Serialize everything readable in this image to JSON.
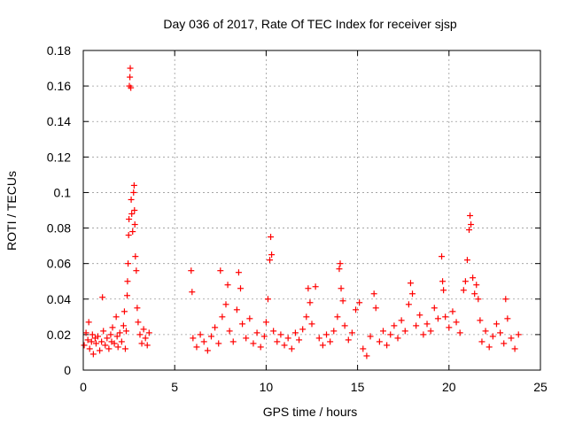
{
  "chart_data": {
    "type": "scatter",
    "title": "Day 036 of 2017, Rate Of TEC Index for receiver sjsp",
    "xlabel": "GPS time / hours",
    "ylabel": "ROTI / TECUs",
    "xlim": [
      0,
      25
    ],
    "ylim": [
      0,
      0.18
    ],
    "x_ticks": [
      0,
      5,
      10,
      15,
      20,
      25
    ],
    "x_tick_labels": [
      "0",
      "5",
      "10",
      "15",
      "20",
      "25"
    ],
    "y_ticks": [
      0,
      0.02,
      0.04,
      0.06,
      0.08,
      0.1,
      0.12,
      0.14,
      0.16,
      0.18
    ],
    "y_tick_labels": [
      "0",
      "0.02",
      "0.04",
      "0.06",
      "0.08",
      "0.1",
      "0.12",
      "0.14",
      "0.16",
      "0.18"
    ],
    "grid": true,
    "marker": "+",
    "color": "#ff0000",
    "gap_hours": [
      3.7,
      5.8
    ],
    "series": [
      {
        "name": "ROTI",
        "points": [
          [
            0.05,
            0.014
          ],
          [
            0.15,
            0.021
          ],
          [
            0.25,
            0.017
          ],
          [
            0.3,
            0.027
          ],
          [
            0.35,
            0.012
          ],
          [
            0.45,
            0.016
          ],
          [
            0.5,
            0.02
          ],
          [
            0.55,
            0.009
          ],
          [
            0.65,
            0.018
          ],
          [
            0.7,
            0.015
          ],
          [
            0.8,
            0.019
          ],
          [
            0.9,
            0.011
          ],
          [
            1.0,
            0.016
          ],
          [
            1.05,
            0.041
          ],
          [
            1.1,
            0.022
          ],
          [
            1.2,
            0.014
          ],
          [
            1.3,
            0.018
          ],
          [
            1.4,
            0.012
          ],
          [
            1.5,
            0.02
          ],
          [
            1.55,
            0.016
          ],
          [
            1.6,
            0.024
          ],
          [
            1.7,
            0.015
          ],
          [
            1.8,
            0.03
          ],
          [
            1.85,
            0.019
          ],
          [
            1.9,
            0.013
          ],
          [
            2.0,
            0.021
          ],
          [
            2.1,
            0.016
          ],
          [
            2.2,
            0.025
          ],
          [
            2.25,
            0.033
          ],
          [
            2.3,
            0.012
          ],
          [
            2.35,
            0.022
          ],
          [
            2.4,
            0.042
          ],
          [
            2.42,
            0.05
          ],
          [
            2.45,
            0.06
          ],
          [
            2.48,
            0.076
          ],
          [
            2.5,
            0.085
          ],
          [
            2.52,
            0.16
          ],
          [
            2.55,
            0.165
          ],
          [
            2.57,
            0.17
          ],
          [
            2.6,
            0.159
          ],
          [
            2.62,
            0.096
          ],
          [
            2.65,
            0.088
          ],
          [
            2.7,
            0.078
          ],
          [
            2.75,
            0.1
          ],
          [
            2.78,
            0.104
          ],
          [
            2.8,
            0.09
          ],
          [
            2.82,
            0.082
          ],
          [
            2.85,
            0.064
          ],
          [
            2.9,
            0.056
          ],
          [
            2.95,
            0.035
          ],
          [
            3.0,
            0.027
          ],
          [
            3.1,
            0.02
          ],
          [
            3.2,
            0.015
          ],
          [
            3.3,
            0.023
          ],
          [
            3.4,
            0.018
          ],
          [
            3.5,
            0.014
          ],
          [
            3.6,
            0.021
          ],
          [
            5.9,
            0.056
          ],
          [
            5.95,
            0.044
          ],
          [
            6.0,
            0.018
          ],
          [
            6.2,
            0.013
          ],
          [
            6.4,
            0.02
          ],
          [
            6.6,
            0.016
          ],
          [
            6.8,
            0.011
          ],
          [
            7.0,
            0.019
          ],
          [
            7.2,
            0.024
          ],
          [
            7.4,
            0.015
          ],
          [
            7.5,
            0.056
          ],
          [
            7.6,
            0.03
          ],
          [
            7.8,
            0.037
          ],
          [
            7.9,
            0.048
          ],
          [
            8.0,
            0.022
          ],
          [
            8.2,
            0.016
          ],
          [
            8.4,
            0.034
          ],
          [
            8.5,
            0.055
          ],
          [
            8.6,
            0.046
          ],
          [
            8.7,
            0.026
          ],
          [
            8.9,
            0.018
          ],
          [
            9.1,
            0.029
          ],
          [
            9.3,
            0.015
          ],
          [
            9.5,
            0.021
          ],
          [
            9.7,
            0.013
          ],
          [
            9.9,
            0.019
          ],
          [
            10.0,
            0.027
          ],
          [
            10.1,
            0.04
          ],
          [
            10.2,
            0.062
          ],
          [
            10.25,
            0.075
          ],
          [
            10.3,
            0.065
          ],
          [
            10.4,
            0.022
          ],
          [
            10.6,
            0.016
          ],
          [
            10.8,
            0.02
          ],
          [
            11.0,
            0.014
          ],
          [
            11.2,
            0.018
          ],
          [
            11.4,
            0.012
          ],
          [
            11.6,
            0.021
          ],
          [
            11.8,
            0.017
          ],
          [
            12.0,
            0.023
          ],
          [
            12.2,
            0.03
          ],
          [
            12.3,
            0.046
          ],
          [
            12.4,
            0.038
          ],
          [
            12.5,
            0.026
          ],
          [
            12.7,
            0.047
          ],
          [
            12.9,
            0.018
          ],
          [
            13.1,
            0.014
          ],
          [
            13.3,
            0.02
          ],
          [
            13.5,
            0.016
          ],
          [
            13.7,
            0.022
          ],
          [
            13.9,
            0.03
          ],
          [
            14.0,
            0.057
          ],
          [
            14.05,
            0.06
          ],
          [
            14.1,
            0.046
          ],
          [
            14.2,
            0.039
          ],
          [
            14.3,
            0.025
          ],
          [
            14.5,
            0.017
          ],
          [
            14.7,
            0.021
          ],
          [
            14.9,
            0.034
          ],
          [
            15.1,
            0.038
          ],
          [
            15.3,
            0.012
          ],
          [
            15.5,
            0.008
          ],
          [
            15.7,
            0.019
          ],
          [
            15.9,
            0.043
          ],
          [
            16.0,
            0.035
          ],
          [
            16.2,
            0.016
          ],
          [
            16.4,
            0.022
          ],
          [
            16.6,
            0.014
          ],
          [
            16.8,
            0.02
          ],
          [
            17.0,
            0.025
          ],
          [
            17.2,
            0.018
          ],
          [
            17.4,
            0.028
          ],
          [
            17.6,
            0.022
          ],
          [
            17.8,
            0.037
          ],
          [
            17.9,
            0.049
          ],
          [
            18.0,
            0.043
          ],
          [
            18.2,
            0.025
          ],
          [
            18.4,
            0.031
          ],
          [
            18.6,
            0.02
          ],
          [
            18.8,
            0.026
          ],
          [
            19.0,
            0.022
          ],
          [
            19.2,
            0.035
          ],
          [
            19.4,
            0.029
          ],
          [
            19.6,
            0.064
          ],
          [
            19.65,
            0.05
          ],
          [
            19.7,
            0.045
          ],
          [
            19.8,
            0.03
          ],
          [
            20.0,
            0.024
          ],
          [
            20.2,
            0.033
          ],
          [
            20.4,
            0.027
          ],
          [
            20.6,
            0.021
          ],
          [
            20.8,
            0.045
          ],
          [
            20.9,
            0.05
          ],
          [
            21.0,
            0.062
          ],
          [
            21.1,
            0.079
          ],
          [
            21.15,
            0.087
          ],
          [
            21.2,
            0.082
          ],
          [
            21.3,
            0.052
          ],
          [
            21.4,
            0.043
          ],
          [
            21.5,
            0.048
          ],
          [
            21.6,
            0.04
          ],
          [
            21.7,
            0.028
          ],
          [
            21.8,
            0.016
          ],
          [
            22.0,
            0.022
          ],
          [
            22.2,
            0.013
          ],
          [
            22.4,
            0.019
          ],
          [
            22.6,
            0.026
          ],
          [
            22.8,
            0.021
          ],
          [
            23.0,
            0.015
          ],
          [
            23.1,
            0.04
          ],
          [
            23.2,
            0.029
          ],
          [
            23.4,
            0.018
          ],
          [
            23.6,
            0.012
          ],
          [
            23.8,
            0.02
          ]
        ]
      }
    ]
  }
}
